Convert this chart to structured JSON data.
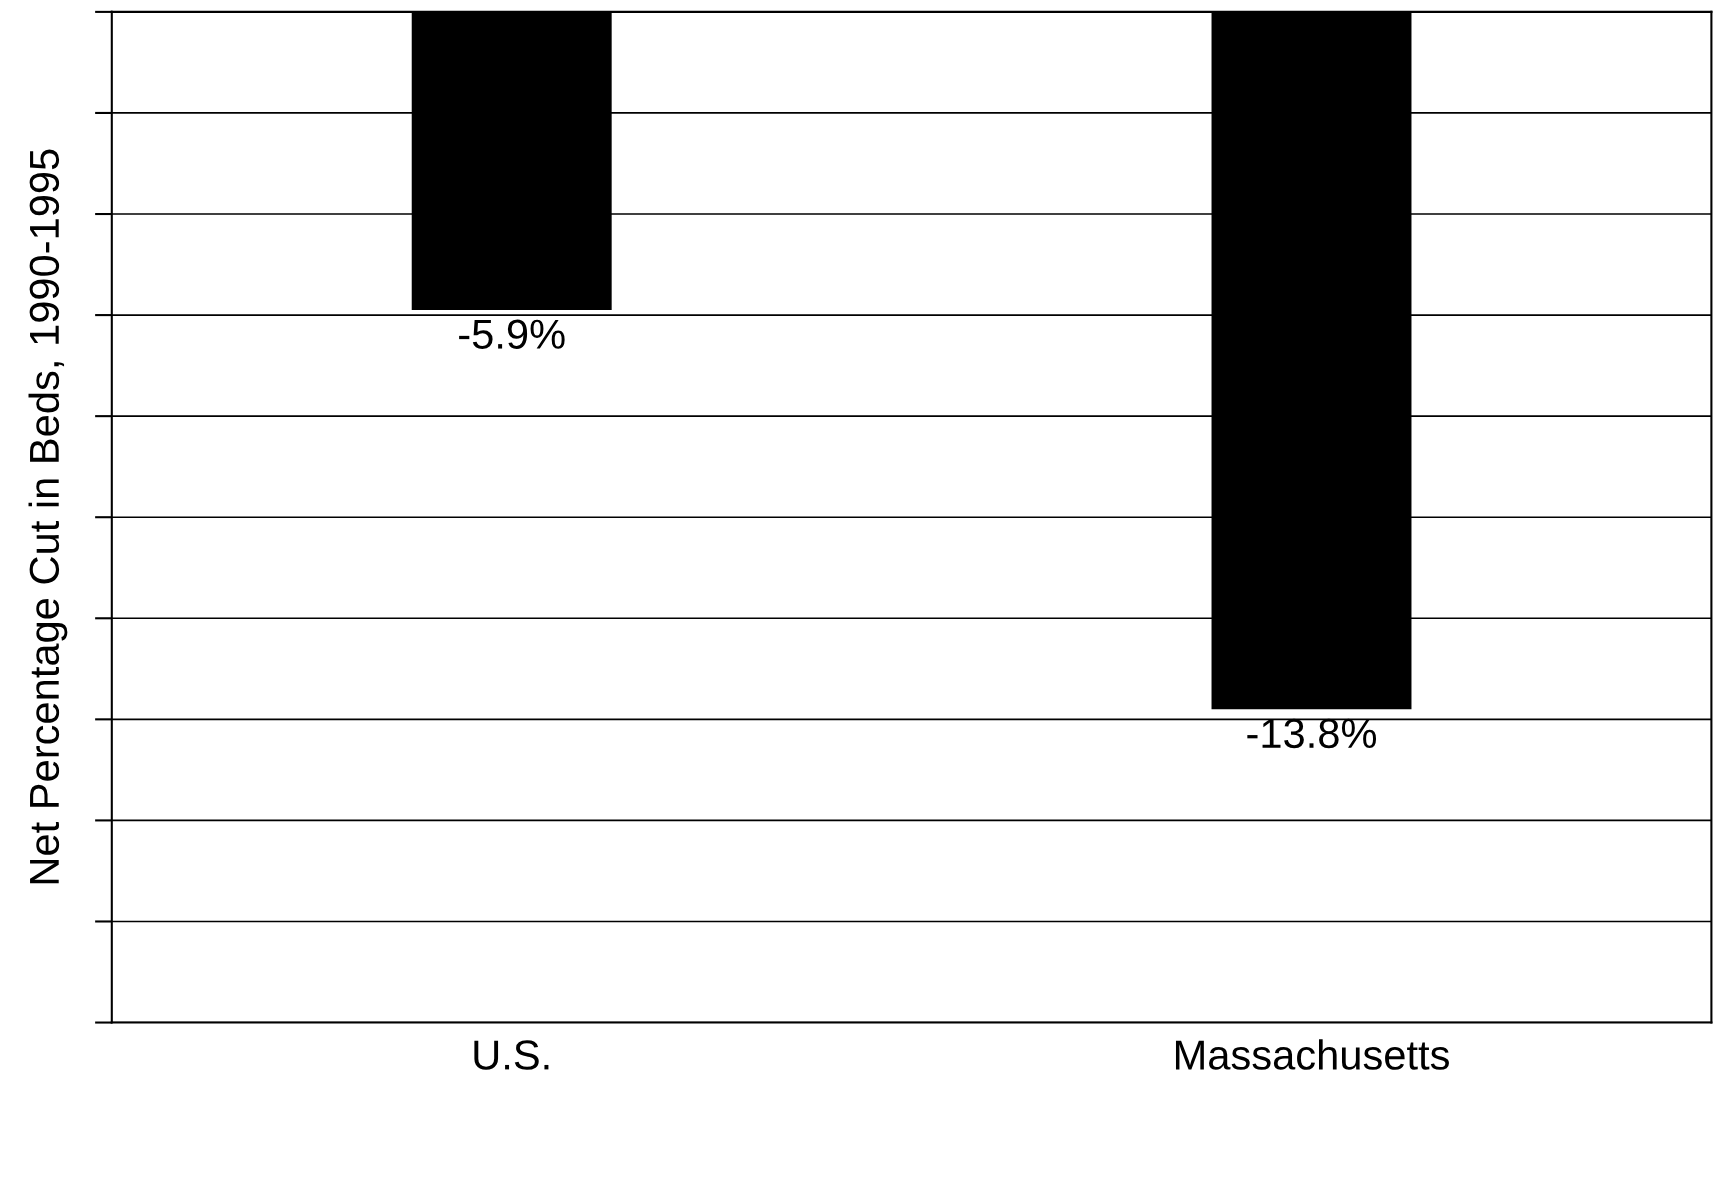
{
  "chart_data": {
    "type": "bar",
    "ylabel": "Net Percentage Cut in Beds, 1990-1995",
    "categories": [
      "U.S.",
      "Massachusetts"
    ],
    "values": [
      -5.9,
      -13.8
    ],
    "color": "#000000",
    "value_labels": [
      "-5.9%",
      "-13.8%"
    ],
    "ylim": [
      -20,
      0
    ],
    "yticks": [
      {
        "value": -20,
        "label": null
      },
      {
        "value": -18,
        "label": null
      },
      {
        "value": -16,
        "label": null
      },
      {
        "value": -14,
        "label": null
      },
      {
        "value": -12,
        "label": null
      },
      {
        "value": -10,
        "label": null
      },
      {
        "value": -8,
        "label": null
      },
      {
        "value": -6,
        "label": null
      },
      {
        "value": -4,
        "label": null
      },
      {
        "value": -2,
        "label": null
      },
      {
        "value": 0,
        "label": null
      }
    ],
    "tick_labels": "x",
    "grid": "y",
    "legend": false
  }
}
